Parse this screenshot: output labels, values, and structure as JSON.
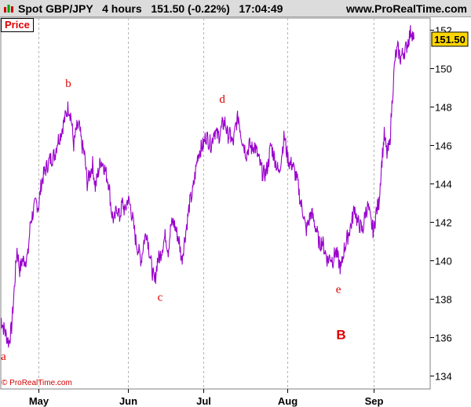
{
  "header": {
    "title": "Spot GBP/JPY   4 hours   151.50 (-0.22%)   17:04:49",
    "site": "www.ProRealTime.com",
    "icon": "candlestick-bars-icon"
  },
  "panel": {
    "label": "Price"
  },
  "footer": {
    "copyright": "© ProRealTime.com"
  },
  "colors": {
    "line": "#9900cc",
    "annotation": "#e00000",
    "grid": "#b4b4b4",
    "last_price_bg": "#ffd700"
  },
  "chart_data": {
    "type": "line",
    "instrument": "Spot GBP/JPY",
    "interval": "4 hours",
    "last_price": 151.5,
    "last_price_label": "151.50",
    "change": "(-0.22%)",
    "time": "17:04:49",
    "x_range": [
      "2013-04-17",
      "2013-09-23"
    ],
    "ylim": [
      133.3,
      152.6
    ],
    "y_ticks": [
      134,
      136,
      138,
      140,
      142,
      144,
      146,
      148,
      150,
      152
    ],
    "x_ticks": [
      {
        "date": "2013-05-01",
        "label": "May"
      },
      {
        "date": "2013-06-03",
        "label": "Jun"
      },
      {
        "date": "2013-07-01",
        "label": "Jul"
      },
      {
        "date": "2013-08-01",
        "label": "Aug"
      },
      {
        "date": "2013-09-02",
        "label": "Sep"
      }
    ],
    "grid": "vertical dashed at month starts",
    "series": [
      {
        "points": [
          [
            "2013-04-17",
            137.0
          ],
          [
            "2013-04-18",
            136.5
          ],
          [
            "2013-04-20",
            135.7
          ],
          [
            "2013-04-21",
            136.5
          ],
          [
            "2013-04-22",
            138.5
          ],
          [
            "2013-04-23",
            140.6
          ],
          [
            "2013-04-24",
            139.5
          ],
          [
            "2013-04-25",
            140.0
          ],
          [
            "2013-04-26",
            140.0
          ],
          [
            "2013-04-27",
            140.2
          ],
          [
            "2013-04-28",
            142.0
          ],
          [
            "2013-04-30",
            143.0
          ],
          [
            "2013-05-01",
            142.8
          ],
          [
            "2013-05-02",
            144.0
          ],
          [
            "2013-05-03",
            144.5
          ],
          [
            "2013-05-05",
            145.2
          ],
          [
            "2013-05-07",
            145.5
          ],
          [
            "2013-05-08",
            146.2
          ],
          [
            "2013-05-09",
            146.5
          ],
          [
            "2013-05-10",
            147.0
          ],
          [
            "2013-05-11",
            147.5
          ],
          [
            "2013-05-12",
            148.0
          ],
          [
            "2013-05-13",
            147.5
          ],
          [
            "2013-05-14",
            146.0
          ],
          [
            "2013-05-15",
            146.8
          ],
          [
            "2013-05-16",
            147.0
          ],
          [
            "2013-05-17",
            146.0
          ],
          [
            "2013-05-18",
            145.5
          ],
          [
            "2013-05-19",
            144.0
          ],
          [
            "2013-05-20",
            144.5
          ],
          [
            "2013-05-21",
            145.0
          ],
          [
            "2013-05-22",
            143.8
          ],
          [
            "2013-05-23",
            144.5
          ],
          [
            "2013-05-24",
            145.2
          ],
          [
            "2013-05-25",
            145.0
          ],
          [
            "2013-05-26",
            144.5
          ],
          [
            "2013-05-27",
            144.0
          ],
          [
            "2013-05-28",
            142.5
          ],
          [
            "2013-05-29",
            142.0
          ],
          [
            "2013-05-30",
            142.8
          ],
          [
            "2013-05-31",
            142.2
          ],
          [
            "2013-06-01",
            143.0
          ],
          [
            "2013-06-02",
            142.5
          ],
          [
            "2013-06-03",
            143.2
          ],
          [
            "2013-06-04",
            142.8
          ],
          [
            "2013-06-05",
            142.0
          ],
          [
            "2013-06-06",
            141.0
          ],
          [
            "2013-06-07",
            140.5
          ],
          [
            "2013-06-08",
            140.0
          ],
          [
            "2013-06-09",
            141.0
          ],
          [
            "2013-06-10",
            141.5
          ],
          [
            "2013-06-11",
            140.5
          ],
          [
            "2013-06-12",
            139.5
          ],
          [
            "2013-06-13",
            138.8
          ],
          [
            "2013-06-14",
            140.0
          ],
          [
            "2013-06-15",
            140.2
          ],
          [
            "2013-06-16",
            140.8
          ],
          [
            "2013-06-17",
            141.3
          ],
          [
            "2013-06-18",
            140.5
          ],
          [
            "2013-06-19",
            141.8
          ],
          [
            "2013-06-20",
            142.0
          ],
          [
            "2013-06-21",
            141.5
          ],
          [
            "2013-06-22",
            141.0
          ],
          [
            "2013-06-23",
            140.0
          ],
          [
            "2013-06-24",
            141.0
          ],
          [
            "2013-06-25",
            142.0
          ],
          [
            "2013-06-26",
            143.0
          ],
          [
            "2013-06-27",
            143.5
          ],
          [
            "2013-06-28",
            144.5
          ],
          [
            "2013-06-29",
            145.5
          ],
          [
            "2013-06-30",
            145.8
          ],
          [
            "2013-07-01",
            146.0
          ],
          [
            "2013-07-02",
            146.5
          ],
          [
            "2013-07-03",
            146.2
          ],
          [
            "2013-07-04",
            146.0
          ],
          [
            "2013-07-05",
            146.8
          ],
          [
            "2013-07-06",
            146.5
          ],
          [
            "2013-07-07",
            146.5
          ],
          [
            "2013-07-08",
            147.0
          ],
          [
            "2013-07-09",
            147.2
          ],
          [
            "2013-07-10",
            146.5
          ],
          [
            "2013-07-11",
            146.5
          ],
          [
            "2013-07-12",
            146.0
          ],
          [
            "2013-07-13",
            147.0
          ],
          [
            "2013-07-14",
            147.5
          ],
          [
            "2013-07-15",
            146.5
          ],
          [
            "2013-07-16",
            146.0
          ],
          [
            "2013-07-17",
            145.5
          ],
          [
            "2013-07-18",
            146.0
          ],
          [
            "2013-07-19",
            145.8
          ],
          [
            "2013-07-20",
            146.0
          ],
          [
            "2013-07-21",
            145.5
          ],
          [
            "2013-07-22",
            145.0
          ],
          [
            "2013-07-23",
            144.5
          ],
          [
            "2013-07-24",
            144.5
          ],
          [
            "2013-07-25",
            145.0
          ],
          [
            "2013-07-26",
            146.0
          ],
          [
            "2013-07-27",
            145.5
          ],
          [
            "2013-07-28",
            145.0
          ],
          [
            "2013-07-29",
            144.5
          ],
          [
            "2013-07-30",
            145.5
          ],
          [
            "2013-07-31",
            146.5
          ],
          [
            "2013-08-01",
            145.5
          ],
          [
            "2013-08-02",
            145.0
          ],
          [
            "2013-08-03",
            145.0
          ],
          [
            "2013-08-04",
            144.5
          ],
          [
            "2013-08-05",
            144.0
          ],
          [
            "2013-08-06",
            143.0
          ],
          [
            "2013-08-07",
            142.5
          ],
          [
            "2013-08-08",
            141.5
          ],
          [
            "2013-08-09",
            142.0
          ],
          [
            "2013-08-10",
            142.5
          ],
          [
            "2013-08-11",
            142.0
          ],
          [
            "2013-08-12",
            141.5
          ],
          [
            "2013-08-13",
            140.8
          ],
          [
            "2013-08-14",
            141.0
          ],
          [
            "2013-08-15",
            140.5
          ],
          [
            "2013-08-16",
            140.0
          ],
          [
            "2013-08-17",
            140.2
          ],
          [
            "2013-08-18",
            140.0
          ],
          [
            "2013-08-19",
            140.5
          ],
          [
            "2013-08-20",
            140.0
          ],
          [
            "2013-08-21",
            139.5
          ],
          [
            "2013-08-22",
            140.5
          ],
          [
            "2013-08-23",
            141.0
          ],
          [
            "2013-08-24",
            141.5
          ],
          [
            "2013-08-25",
            142.0
          ],
          [
            "2013-08-26",
            142.8
          ],
          [
            "2013-08-27",
            142.0
          ],
          [
            "2013-08-28",
            141.8
          ],
          [
            "2013-08-29",
            141.5
          ],
          [
            "2013-08-30",
            142.5
          ],
          [
            "2013-08-31",
            142.8
          ],
          [
            "2013-09-01",
            142.0
          ],
          [
            "2013-09-02",
            141.5
          ],
          [
            "2013-09-03",
            142.5
          ],
          [
            "2013-09-04",
            143.0
          ],
          [
            "2013-09-05",
            145.0
          ],
          [
            "2013-09-06",
            146.5
          ],
          [
            "2013-09-07",
            145.5
          ],
          [
            "2013-09-08",
            146.0
          ],
          [
            "2013-09-09",
            148.5
          ],
          [
            "2013-09-10",
            150.5
          ],
          [
            "2013-09-11",
            151.0
          ],
          [
            "2013-09-12",
            150.5
          ],
          [
            "2013-09-13",
            150.8
          ],
          [
            "2013-09-14",
            151.0
          ],
          [
            "2013-09-15",
            151.5
          ],
          [
            "2013-09-16",
            152.0
          ],
          [
            "2013-09-17",
            151.5
          ]
        ]
      }
    ],
    "annotations": [
      {
        "text": "a",
        "date": "2013-04-18",
        "price": 134.8
      },
      {
        "text": "b",
        "date": "2013-05-12",
        "price": 149.0
      },
      {
        "text": "c",
        "date": "2013-06-15",
        "price": 137.9
      },
      {
        "text": "d",
        "date": "2013-07-08",
        "price": 148.2
      },
      {
        "text": "e",
        "date": "2013-08-20",
        "price": 138.3
      },
      {
        "text": "B",
        "date": "2013-08-21",
        "price": 135.9,
        "bold": true
      }
    ]
  }
}
